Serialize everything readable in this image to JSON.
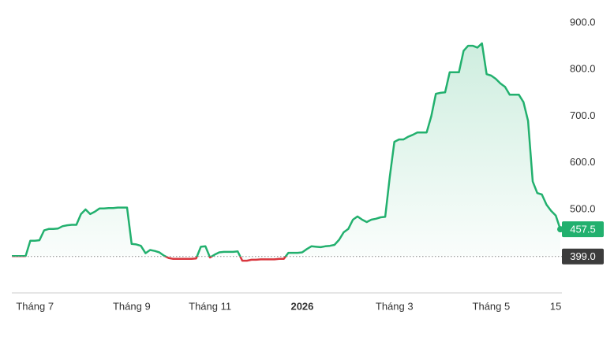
{
  "chart_data": {
    "type": "line",
    "categories": [
      null,
      null,
      null,
      null,
      null,
      "Tháng 7",
      null,
      null,
      null,
      null,
      null,
      null,
      null,
      null,
      null,
      null,
      null,
      null,
      null,
      null,
      null,
      null,
      null,
      null,
      null,
      null,
      "Tháng 9",
      null,
      null,
      null,
      null,
      null,
      null,
      null,
      null,
      null,
      null,
      null,
      null,
      null,
      null,
      null,
      null,
      "Tháng 11",
      null,
      null,
      null,
      null,
      null,
      null,
      null,
      null,
      null,
      null,
      null,
      null,
      null,
      null,
      null,
      null,
      null,
      null,
      null,
      "2026",
      null,
      null,
      null,
      null,
      null,
      null,
      null,
      null,
      null,
      null,
      null,
      null,
      null,
      null,
      null,
      null,
      null,
      null,
      null,
      "Tháng 3",
      null,
      null,
      null,
      null,
      null,
      null,
      null,
      null,
      null,
      null,
      null,
      null,
      null,
      null,
      null,
      null,
      null,
      null,
      null,
      null,
      "Tháng 5",
      null,
      null,
      null,
      null,
      null,
      null,
      null,
      null,
      null,
      null,
      null,
      null,
      null,
      "15",
      null
    ],
    "series": [
      {
        "color": "#22b06e",
        "values": [
          400,
          400,
          400,
          400,
          433,
          433,
          434,
          455,
          458,
          458,
          459,
          464,
          466,
          467,
          467,
          490,
          500,
          490,
          495,
          502,
          502,
          503,
          503,
          504,
          504,
          504,
          426,
          425,
          422,
          406,
          413,
          411,
          408,
          401,
          396,
          394,
          394,
          394,
          394,
          394,
          395,
          420,
          421,
          397,
          403,
          408,
          409,
          409,
          409,
          410,
          390,
          390,
          392,
          392,
          393,
          393,
          393,
          393,
          394,
          394,
          407,
          407,
          407,
          408,
          415,
          421,
          420,
          419,
          421,
          422,
          424,
          435,
          451,
          458,
          478,
          485,
          478,
          473,
          478,
          480,
          483,
          484,
          570,
          645,
          650,
          650,
          656,
          660,
          665,
          665,
          665,
          700,
          748,
          750,
          751,
          794,
          794,
          794,
          840,
          851,
          851,
          847,
          856,
          790,
          787,
          780,
          770,
          763,
          746,
          746,
          746,
          730,
          690,
          560,
          535,
          532,
          510,
          497,
          487,
          457.5
        ]
      }
    ],
    "below_color": "#d9363e",
    "baseline": {
      "value": 399,
      "label": "399.0"
    },
    "price_label": {
      "value": 457.5,
      "label": "457.5"
    },
    "ylim": [
      321,
      949
    ],
    "yticks": [
      {
        "value": 500,
        "label": "500.0"
      },
      {
        "value": 600,
        "label": "600.0"
      },
      {
        "value": 700,
        "label": "700.0"
      },
      {
        "value": 800,
        "label": "800.0"
      },
      {
        "value": 900,
        "label": "900.0"
      }
    ]
  }
}
